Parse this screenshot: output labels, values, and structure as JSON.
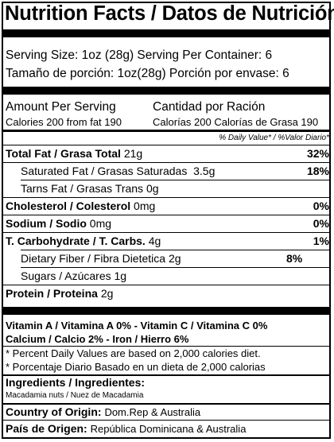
{
  "title": "Nutrition Facts / Datos de Nutrición",
  "serving": {
    "line_en": "Serving Size: 1oz (28g) Serving Per Container: 6",
    "line_es": "Tamaño de porción: 1oz(28g) Porción por envase: 6"
  },
  "amount": {
    "header_en": "Amount Per Serving",
    "header_es": "Cantidad por Ración",
    "calories_en": "Calories 200  from fat 190",
    "calories_es": "Calorías 200 Calorías de Grasa 190",
    "dv_header": "% Daily Value* / %Valor Diario*"
  },
  "nutrients": {
    "total_fat": {
      "name": "Total Fat / Grasa Total",
      "amount": "21g",
      "dv": "32%"
    },
    "sat_fat": {
      "name": "Saturated Fat / Grasas Saturadas",
      "amount": "3.5g",
      "dv": "18%"
    },
    "trans_fat": {
      "name": "Tarns Fat / Grasas Trans",
      "amount": "0g"
    },
    "cholesterol": {
      "name": "Cholesterol / Colesterol",
      "amount": "0mg",
      "dv": "0%"
    },
    "sodium": {
      "name": "Sodium / Sodio",
      "amount": "0mg",
      "dv": "0%"
    },
    "carbs": {
      "name": "T. Carbohydrate / T. Carbs.",
      "amount": "4g",
      "dv": "1%"
    },
    "fiber": {
      "name": "Dietary Fiber / Fibra Dietetica",
      "amount": "2g",
      "dv": "8%"
    },
    "sugars": {
      "name": "Sugars / Azúcares",
      "amount": "1g"
    },
    "protein": {
      "name": "Protein / Proteina",
      "amount": "2g"
    }
  },
  "vitamins": {
    "line1": "Vitamin A / Vitamina A 0% - Vitamin C / Vitamina C 0%",
    "line2": "Calcium / Calcio 2% - Iron / Hierro 6%"
  },
  "footnotes": {
    "en": "* Percent Daily Values are based on 2,000 calories diet.",
    "es": "* Porcentaje Diario Basado en un dieta de 2,000 calorias"
  },
  "ingredients": {
    "header": "Ingredients / Ingredientes:",
    "text": "Macadamia nuts / Nuez de Macadamia"
  },
  "origin": {
    "label_en": "Country of Origin:",
    "value_en": "Dom.Rep & Australia",
    "label_es": "País de Origen:",
    "value_es": "República Dominicana & Australia"
  }
}
